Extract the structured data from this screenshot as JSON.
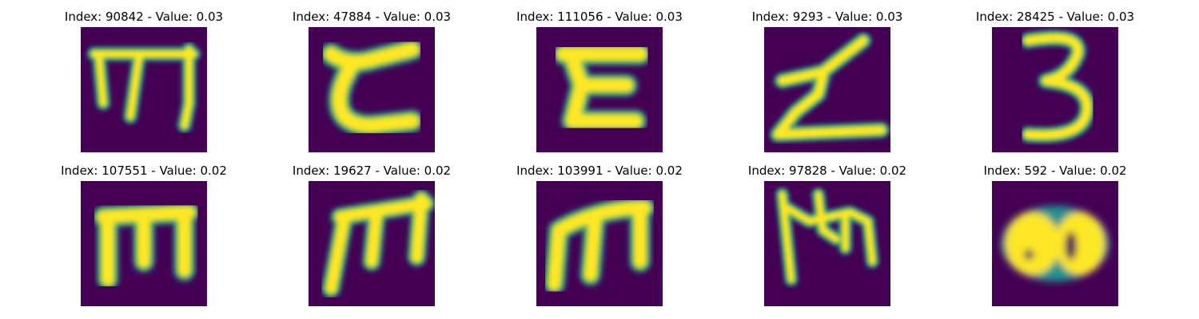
{
  "figure": {
    "background_color": "#440154",
    "foreground_color": "#fde725",
    "panels": [
      {
        "index_label": "Index: 90842 - Value: 0.03",
        "glyph": "m-glyph-icon"
      },
      {
        "index_label": "Index: 47884 - Value: 0.03",
        "glyph": "c-like-glyph-icon"
      },
      {
        "index_label": "Index: 111056 - Value: 0.03",
        "glyph": "z-like-glyph-icon"
      },
      {
        "index_label": "Index: 9293 - Value: 0.03",
        "glyph": "z-glyph-icon"
      },
      {
        "index_label": "Index: 28425 - Value: 0.03",
        "glyph": "three-glyph-icon"
      },
      {
        "index_label": "Index: 107551 - Value: 0.02",
        "glyph": "m-glyph-icon"
      },
      {
        "index_label": "Index: 19627 - Value: 0.02",
        "glyph": "m-glyph-icon"
      },
      {
        "index_label": "Index: 103991 - Value: 0.02",
        "glyph": "m-glyph-icon"
      },
      {
        "index_label": "Index: 97828 - Value: 0.02",
        "glyph": "m-like-glyph-icon"
      },
      {
        "index_label": "Index: 592 - Value: 0.02",
        "glyph": "eight-like-glyph-icon"
      }
    ]
  }
}
